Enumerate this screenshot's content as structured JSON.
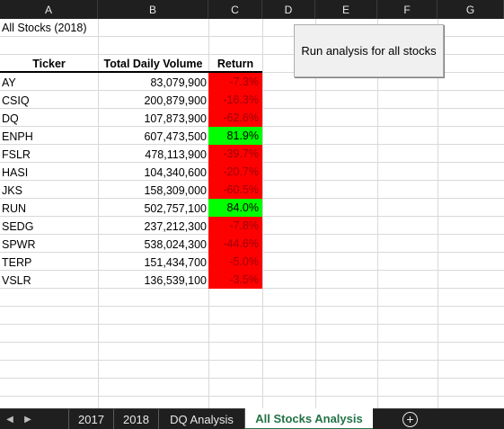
{
  "columns": [
    "A",
    "B",
    "C",
    "D",
    "E",
    "F",
    "G"
  ],
  "sheet": {
    "title": "All Stocks (2018)",
    "headers": {
      "ticker": "Ticker",
      "volume": "Total Daily Volume",
      "return": "Return"
    },
    "rows": [
      {
        "ticker": "AY",
        "volume": "83,079,900",
        "return": "-7.3%",
        "status": "negative"
      },
      {
        "ticker": "CSIQ",
        "volume": "200,879,900",
        "return": "-16.3%",
        "status": "negative"
      },
      {
        "ticker": "DQ",
        "volume": "107,873,900",
        "return": "-62.6%",
        "status": "negative"
      },
      {
        "ticker": "ENPH",
        "volume": "607,473,500",
        "return": "81.9%",
        "status": "positive"
      },
      {
        "ticker": "FSLR",
        "volume": "478,113,900",
        "return": "-39.7%",
        "status": "negative"
      },
      {
        "ticker": "HASI",
        "volume": "104,340,600",
        "return": "-20.7%",
        "status": "negative"
      },
      {
        "ticker": "JKS",
        "volume": "158,309,000",
        "return": "-60.5%",
        "status": "negative"
      },
      {
        "ticker": "RUN",
        "volume": "502,757,100",
        "return": "84.0%",
        "status": "positive"
      },
      {
        "ticker": "SEDG",
        "volume": "237,212,300",
        "return": "-7.8%",
        "status": "negative"
      },
      {
        "ticker": "SPWR",
        "volume": "538,024,300",
        "return": "-44.6%",
        "status": "negative"
      },
      {
        "ticker": "TERP",
        "volume": "151,434,700",
        "return": "-5.0%",
        "status": "negative"
      },
      {
        "ticker": "VSLR",
        "volume": "136,539,100",
        "return": "-3.5%",
        "status": "negative"
      }
    ]
  },
  "button": {
    "label": "Run analysis for all stocks"
  },
  "tabs": [
    {
      "label": "2017",
      "active": false
    },
    {
      "label": "2018",
      "active": false
    },
    {
      "label": "DQ Analysis",
      "active": false
    },
    {
      "label": "All Stocks Analysis",
      "active": true
    }
  ],
  "add_sheet_icon": "+",
  "colors": {
    "negative_fill": "#ff0000",
    "positive_fill": "#00ff00",
    "negative_text": "#9c0006",
    "positive_text": "#000000",
    "active_tab_text": "#217346"
  },
  "icons": {
    "prev_sheet": "caret-left-icon",
    "next_sheet": "caret-right-icon",
    "add_sheet": "add-sheet-icon"
  }
}
